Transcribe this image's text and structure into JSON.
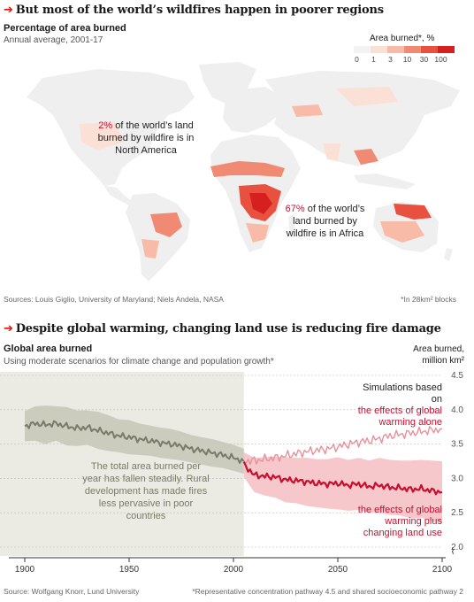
{
  "map_section": {
    "title": "But most of the world’s wildfires happen in poorer regions",
    "subtitle": "Percentage of area burned",
    "note": "Annual average, 2001-17",
    "legend_title": "Area burned*, %",
    "legend_ticks": [
      "0",
      "1",
      "3",
      "10",
      "30",
      "100"
    ],
    "legend_colors": [
      "#f3f3f3",
      "#fbe0d6",
      "#f7bba8",
      "#f08a72",
      "#e8503f",
      "#d61f1f"
    ],
    "annotation_na": {
      "pct": "2%",
      "rest": " of the world’s land burned by wildfire is in North America"
    },
    "annotation_africa": {
      "pct": "67%",
      "rest": " of the world’s land burned by wildfire is in Africa"
    },
    "source": "Sources: Louis Giglio, University of Maryland; Niels Andela, NASA",
    "footnote": "*In 28km² blocks"
  },
  "chart_section": {
    "title": "Despite global warming, changing land use is reducing fire damage",
    "subtitle": "Global area burned",
    "note": "Using moderate scenarios for climate change and population growth*",
    "annotation_history": "The total area burned per year has fallen steadily. Rural development has made fires less pervasive in poor countries",
    "annotation_sim_header": "Simulations based on",
    "annotation_sim_warming": "the effects of global warming alone",
    "annotation_sim_landuse": "the effects of global warming plus changing land use",
    "source": "Source: Wolfgang Knorr, Lund University",
    "footnote": "*Representative concentration pathway 4.5 and shared socioeconomic pathway 2"
  },
  "chart_data": {
    "type": "line",
    "title": "Global area burned",
    "ylabel": "Area burned, million km²",
    "xlim": [
      1900,
      2100
    ],
    "ylim": [
      2.0,
      4.5
    ],
    "xticks": [
      1900,
      1950,
      2000,
      2050,
      2100
    ],
    "yticks": [
      2.0,
      2.5,
      3.0,
      3.5,
      4.0,
      4.5
    ],
    "grid": true,
    "shaded_region": [
      1900,
      2005
    ],
    "series": [
      {
        "name": "Historical",
        "color": "#7a7a68",
        "band_color": "#c9c9bc",
        "x": [
          1900,
          1905,
          1910,
          1915,
          1920,
          1925,
          1930,
          1935,
          1940,
          1945,
          1950,
          1955,
          1960,
          1965,
          1970,
          1975,
          1980,
          1985,
          1990,
          1995,
          2000,
          2005
        ],
        "values": [
          3.76,
          3.8,
          3.78,
          3.8,
          3.76,
          3.73,
          3.74,
          3.7,
          3.66,
          3.62,
          3.6,
          3.57,
          3.55,
          3.52,
          3.5,
          3.47,
          3.43,
          3.4,
          3.37,
          3.34,
          3.3,
          3.25
        ],
        "band": [
          0.22,
          0.25,
          0.28,
          0.25,
          0.28,
          0.26,
          0.25,
          0.27,
          0.26,
          0.24,
          0.25,
          0.23,
          0.22,
          0.22,
          0.22,
          0.21,
          0.2,
          0.2,
          0.2,
          0.19,
          0.19,
          0.18
        ]
      },
      {
        "name": "the effects of global warming alone",
        "color": "#e8909a",
        "x": [
          2005,
          2010,
          2015,
          2020,
          2025,
          2030,
          2035,
          2040,
          2045,
          2050,
          2055,
          2060,
          2065,
          2070,
          2075,
          2080,
          2085,
          2090,
          2095,
          2100
        ],
        "values": [
          3.25,
          3.26,
          3.28,
          3.3,
          3.33,
          3.36,
          3.39,
          3.41,
          3.43,
          3.46,
          3.5,
          3.53,
          3.55,
          3.58,
          3.62,
          3.64,
          3.66,
          3.68,
          3.7,
          3.72
        ]
      },
      {
        "name": "the effects of global warming plus changing land use",
        "color": "#c8102e",
        "band_color": "#f6c4c8",
        "x": [
          2005,
          2010,
          2015,
          2020,
          2025,
          2030,
          2035,
          2040,
          2045,
          2050,
          2055,
          2060,
          2065,
          2070,
          2075,
          2080,
          2085,
          2090,
          2095,
          2100
        ],
        "values": [
          3.2,
          3.05,
          3.03,
          3.02,
          2.98,
          2.97,
          2.95,
          2.93,
          2.92,
          2.93,
          2.9,
          2.92,
          2.88,
          2.9,
          2.87,
          2.86,
          2.84,
          2.85,
          2.82,
          2.8
        ],
        "band": [
          0.18,
          0.25,
          0.28,
          0.3,
          0.33,
          0.33,
          0.35,
          0.35,
          0.36,
          0.38,
          0.37,
          0.38,
          0.38,
          0.4,
          0.4,
          0.4,
          0.42,
          0.42,
          0.44,
          0.45
        ]
      }
    ]
  }
}
